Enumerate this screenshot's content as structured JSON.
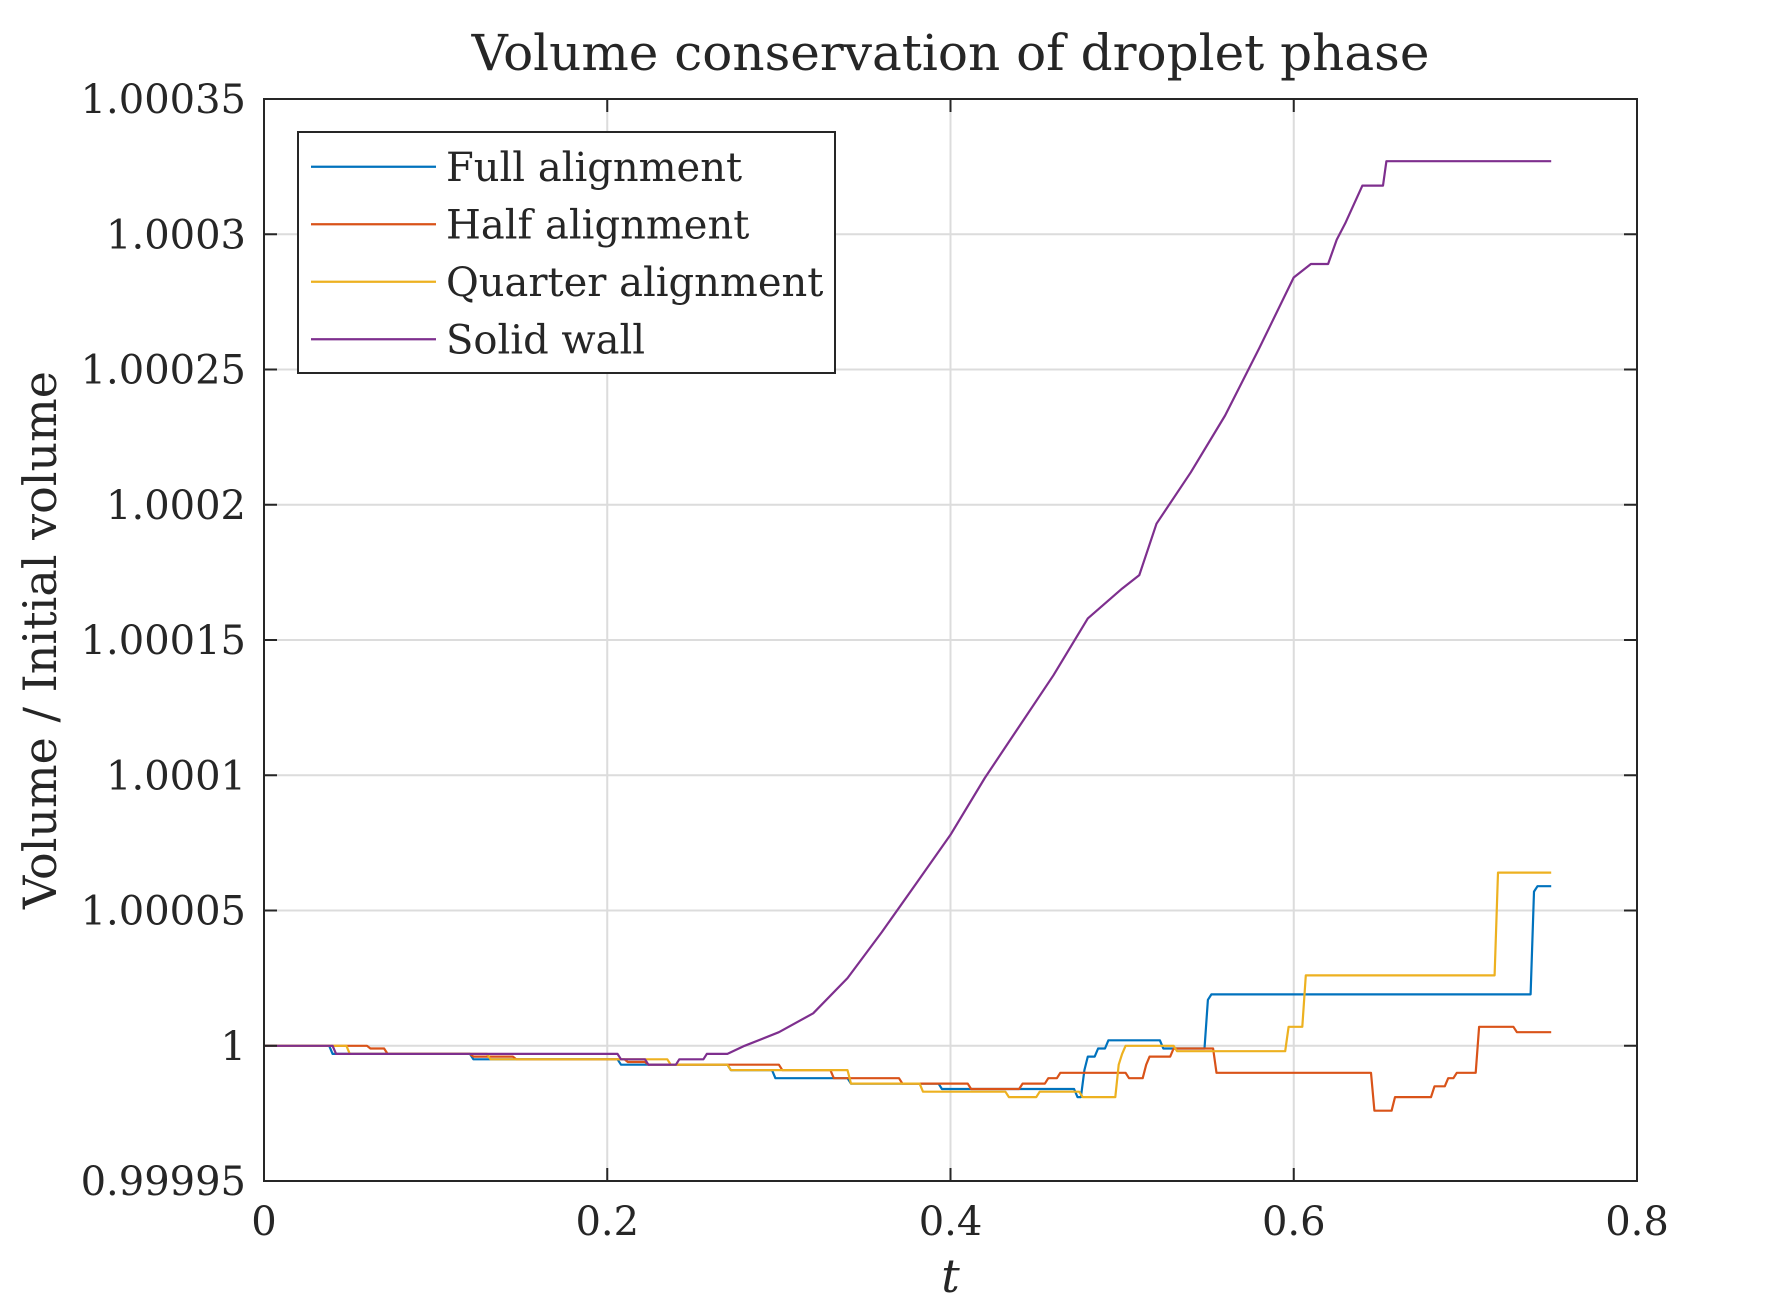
{
  "chart_data": {
    "type": "line",
    "title": "Volume conservation of droplet phase",
    "xlabel": "t",
    "ylabel": "Volume / Initial volume",
    "xlim": [
      0,
      0.8
    ],
    "ylim": [
      0.99995,
      1.00035
    ],
    "xticks": [
      0,
      0.2,
      0.4,
      0.6,
      0.8
    ],
    "xtick_labels": [
      "0",
      "0.2",
      "0.4",
      "0.6",
      "0.8"
    ],
    "yticks": [
      0.99995,
      1,
      1.00005,
      1.0001,
      1.00015,
      1.0002,
      1.00025,
      1.0003,
      1.00035
    ],
    "ytick_labels": [
      "0.99995",
      "1",
      "1.00005",
      "1.0001",
      "1.00015",
      "1.0002",
      "1.00025",
      "1.0003",
      "1.00035"
    ],
    "grid": true,
    "legend_position": "top-left",
    "series": [
      {
        "name": "Full alignment",
        "color": "#0072BD",
        "points": [
          [
            0,
            1.0
          ],
          [
            0.038,
            1.0
          ],
          [
            0.04,
            0.999997
          ],
          [
            0.12,
            0.999997
          ],
          [
            0.122,
            0.999995
          ],
          [
            0.206,
            0.999995
          ],
          [
            0.208,
            0.999993
          ],
          [
            0.27,
            0.999993
          ],
          [
            0.272,
            0.999991
          ],
          [
            0.296,
            0.999991
          ],
          [
            0.298,
            0.999988
          ],
          [
            0.34,
            0.999988
          ],
          [
            0.342,
            0.999986
          ],
          [
            0.393,
            0.999986
          ],
          [
            0.395,
            0.999984
          ],
          [
            0.472,
            0.999984
          ],
          [
            0.474,
            0.999981
          ],
          [
            0.476,
            0.999981
          ],
          [
            0.478,
            0.999991
          ],
          [
            0.48,
            0.999996
          ],
          [
            0.484,
            0.999996
          ],
          [
            0.486,
            0.999999
          ],
          [
            0.49,
            0.999999
          ],
          [
            0.492,
            1.000002
          ],
          [
            0.522,
            1.000002
          ],
          [
            0.524,
            0.999999
          ],
          [
            0.548,
            0.999999
          ],
          [
            0.55,
            1.000017
          ],
          [
            0.552,
            1.000019
          ],
          [
            0.738,
            1.000019
          ],
          [
            0.74,
            1.000057
          ],
          [
            0.742,
            1.000059
          ],
          [
            0.75,
            1.000059
          ]
        ]
      },
      {
        "name": "Half alignment",
        "color": "#D95319",
        "points": [
          [
            0,
            1.0
          ],
          [
            0.06,
            1.0
          ],
          [
            0.062,
            0.999999
          ],
          [
            0.07,
            0.999999
          ],
          [
            0.072,
            0.999997
          ],
          [
            0.12,
            0.999997
          ],
          [
            0.122,
            0.999996
          ],
          [
            0.145,
            0.999996
          ],
          [
            0.147,
            0.999995
          ],
          [
            0.21,
            0.999995
          ],
          [
            0.212,
            0.999994
          ],
          [
            0.222,
            0.999994
          ],
          [
            0.224,
            0.999993
          ],
          [
            0.3,
            0.999993
          ],
          [
            0.302,
            0.999991
          ],
          [
            0.33,
            0.999991
          ],
          [
            0.332,
            0.999988
          ],
          [
            0.37,
            0.999988
          ],
          [
            0.372,
            0.999986
          ],
          [
            0.41,
            0.999986
          ],
          [
            0.412,
            0.999984
          ],
          [
            0.44,
            0.999984
          ],
          [
            0.442,
            0.999986
          ],
          [
            0.455,
            0.999986
          ],
          [
            0.457,
            0.999988
          ],
          [
            0.462,
            0.999988
          ],
          [
            0.464,
            0.99999
          ],
          [
            0.502,
            0.99999
          ],
          [
            0.504,
            0.999988
          ],
          [
            0.512,
            0.999988
          ],
          [
            0.514,
            0.999993
          ],
          [
            0.516,
            0.999996
          ],
          [
            0.528,
            0.999996
          ],
          [
            0.53,
            0.999999
          ],
          [
            0.553,
            0.999999
          ],
          [
            0.555,
            0.99999
          ],
          [
            0.645,
            0.99999
          ],
          [
            0.647,
            0.999976
          ],
          [
            0.657,
            0.999976
          ],
          [
            0.659,
            0.999981
          ],
          [
            0.68,
            0.999981
          ],
          [
            0.682,
            0.999985
          ],
          [
            0.688,
            0.999985
          ],
          [
            0.69,
            0.999988
          ],
          [
            0.693,
            0.999988
          ],
          [
            0.695,
            0.99999
          ],
          [
            0.706,
            0.99999
          ],
          [
            0.708,
            1.000007
          ],
          [
            0.728,
            1.000007
          ],
          [
            0.73,
            1.000005
          ],
          [
            0.75,
            1.000005
          ]
        ]
      },
      {
        "name": "Quarter alignment",
        "color": "#EDB120",
        "points": [
          [
            0,
            1.0
          ],
          [
            0.048,
            1.0
          ],
          [
            0.05,
            0.999997
          ],
          [
            0.13,
            0.999997
          ],
          [
            0.132,
            0.999995
          ],
          [
            0.235,
            0.999995
          ],
          [
            0.237,
            0.999993
          ],
          [
            0.27,
            0.999993
          ],
          [
            0.272,
            0.999991
          ],
          [
            0.34,
            0.999991
          ],
          [
            0.342,
            0.999986
          ],
          [
            0.382,
            0.999986
          ],
          [
            0.384,
            0.999983
          ],
          [
            0.432,
            0.999983
          ],
          [
            0.434,
            0.999981
          ],
          [
            0.45,
            0.999981
          ],
          [
            0.452,
            0.999983
          ],
          [
            0.475,
            0.999983
          ],
          [
            0.477,
            0.999981
          ],
          [
            0.496,
            0.999981
          ],
          [
            0.498,
            0.999993
          ],
          [
            0.5,
            0.999997
          ],
          [
            0.502,
            1.0
          ],
          [
            0.53,
            1.0
          ],
          [
            0.532,
            0.999998
          ],
          [
            0.595,
            0.999998
          ],
          [
            0.597,
            1.000007
          ],
          [
            0.605,
            1.000007
          ],
          [
            0.607,
            1.000026
          ],
          [
            0.717,
            1.000026
          ],
          [
            0.719,
            1.000064
          ],
          [
            0.75,
            1.000064
          ]
        ]
      },
      {
        "name": "Solid wall",
        "color": "#7E2F8E",
        "points": [
          [
            0,
            1.0
          ],
          [
            0.04,
            1.0
          ],
          [
            0.042,
            0.999997
          ],
          [
            0.206,
            0.999997
          ],
          [
            0.208,
            0.999995
          ],
          [
            0.222,
            0.999995
          ],
          [
            0.224,
            0.999993
          ],
          [
            0.24,
            0.999993
          ],
          [
            0.242,
            0.999995
          ],
          [
            0.256,
            0.999995
          ],
          [
            0.258,
            0.999997
          ],
          [
            0.27,
            0.999997
          ],
          [
            0.28,
            1.0
          ],
          [
            0.3,
            1.000005
          ],
          [
            0.32,
            1.000012
          ],
          [
            0.34,
            1.000025
          ],
          [
            0.36,
            1.000042
          ],
          [
            0.38,
            1.00006
          ],
          [
            0.4,
            1.000078
          ],
          [
            0.42,
            1.000099
          ],
          [
            0.44,
            1.000118
          ],
          [
            0.46,
            1.000137
          ],
          [
            0.48,
            1.000158
          ],
          [
            0.5,
            1.000169
          ],
          [
            0.51,
            1.000174
          ],
          [
            0.52,
            1.000193
          ],
          [
            0.54,
            1.000212
          ],
          [
            0.56,
            1.000233
          ],
          [
            0.58,
            1.000258
          ],
          [
            0.6,
            1.000284
          ],
          [
            0.61,
            1.000289
          ],
          [
            0.62,
            1.000289
          ],
          [
            0.625,
            1.000298
          ],
          [
            0.63,
            1.000304
          ],
          [
            0.64,
            1.000318
          ],
          [
            0.652,
            1.000318
          ],
          [
            0.654,
            1.000327
          ],
          [
            0.75,
            1.000327
          ]
        ]
      }
    ]
  }
}
